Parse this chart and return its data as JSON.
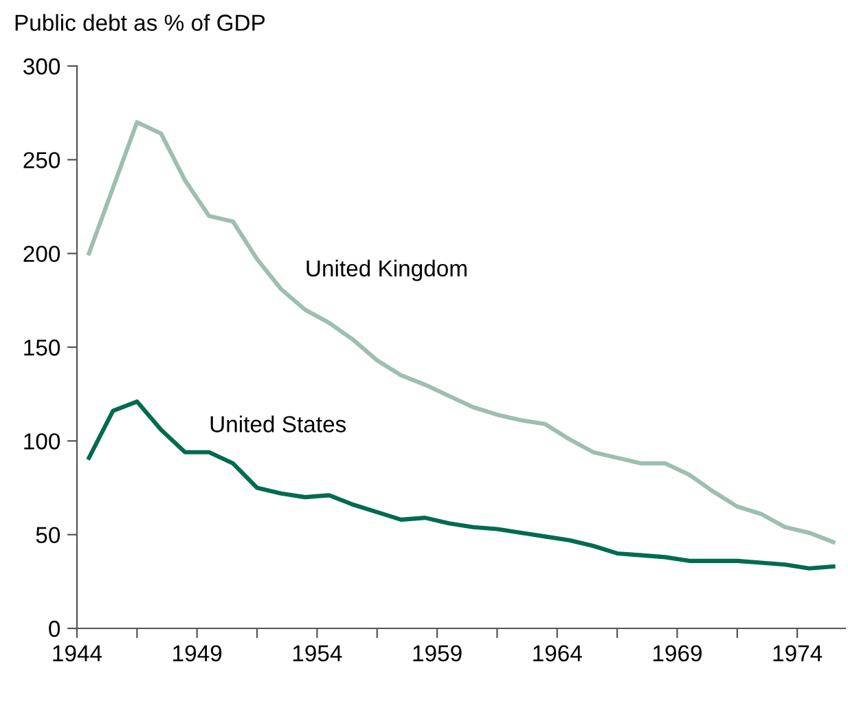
{
  "chart_data": {
    "type": "line",
    "title": "Public debt as % of GDP",
    "x": [
      1944.5,
      1945.5,
      1946.5,
      1947.5,
      1948.5,
      1949.5,
      1950.5,
      1951.5,
      1952.5,
      1953.5,
      1954.5,
      1955.5,
      1956.5,
      1957.5,
      1958.5,
      1959.5,
      1960.5,
      1961.5,
      1962.5,
      1963.5,
      1964.5,
      1965.5,
      1966.5,
      1967.5,
      1968.5,
      1969.5,
      1970.5,
      1971.5,
      1972.5,
      1973.5,
      1974.5,
      1975.5
    ],
    "series": [
      {
        "name": "United Kingdom",
        "color": "#9dbfaf",
        "values": [
          200,
          235,
          270,
          264,
          239,
          220,
          217,
          197,
          181,
          170,
          163,
          154,
          143,
          135,
          130,
          124,
          118,
          114,
          111,
          109,
          101,
          94,
          91,
          88,
          88,
          82,
          73,
          65,
          61,
          54,
          51,
          46
        ]
      },
      {
        "name": "United States",
        "color": "#006b4f",
        "values": [
          91,
          116,
          121,
          106,
          94,
          94,
          88,
          75,
          72,
          70,
          71,
          66,
          62,
          58,
          59,
          56,
          54,
          53,
          51,
          49,
          47,
          44,
          40,
          39,
          38,
          36,
          36,
          36,
          35,
          34,
          32,
          33
        ]
      }
    ],
    "xlim": [
      1944,
      1976
    ],
    "xticks": [
      1944,
      {
        "value": 1946.5,
        "label": null
      },
      1949,
      {
        "value": 1951.5,
        "label": null
      },
      1954,
      {
        "value": 1956.5,
        "label": null
      },
      1959,
      {
        "value": 1961.5,
        "label": null
      },
      1964,
      {
        "value": 1966.5,
        "label": null
      },
      1969,
      {
        "value": 1971.5,
        "label": null
      },
      1974
    ],
    "ylim": [
      0,
      300
    ],
    "yticks": [
      0,
      50,
      100,
      150,
      200,
      250,
      300
    ],
    "grid": false,
    "legend": false,
    "marker": "none",
    "line_style": "solid"
  }
}
